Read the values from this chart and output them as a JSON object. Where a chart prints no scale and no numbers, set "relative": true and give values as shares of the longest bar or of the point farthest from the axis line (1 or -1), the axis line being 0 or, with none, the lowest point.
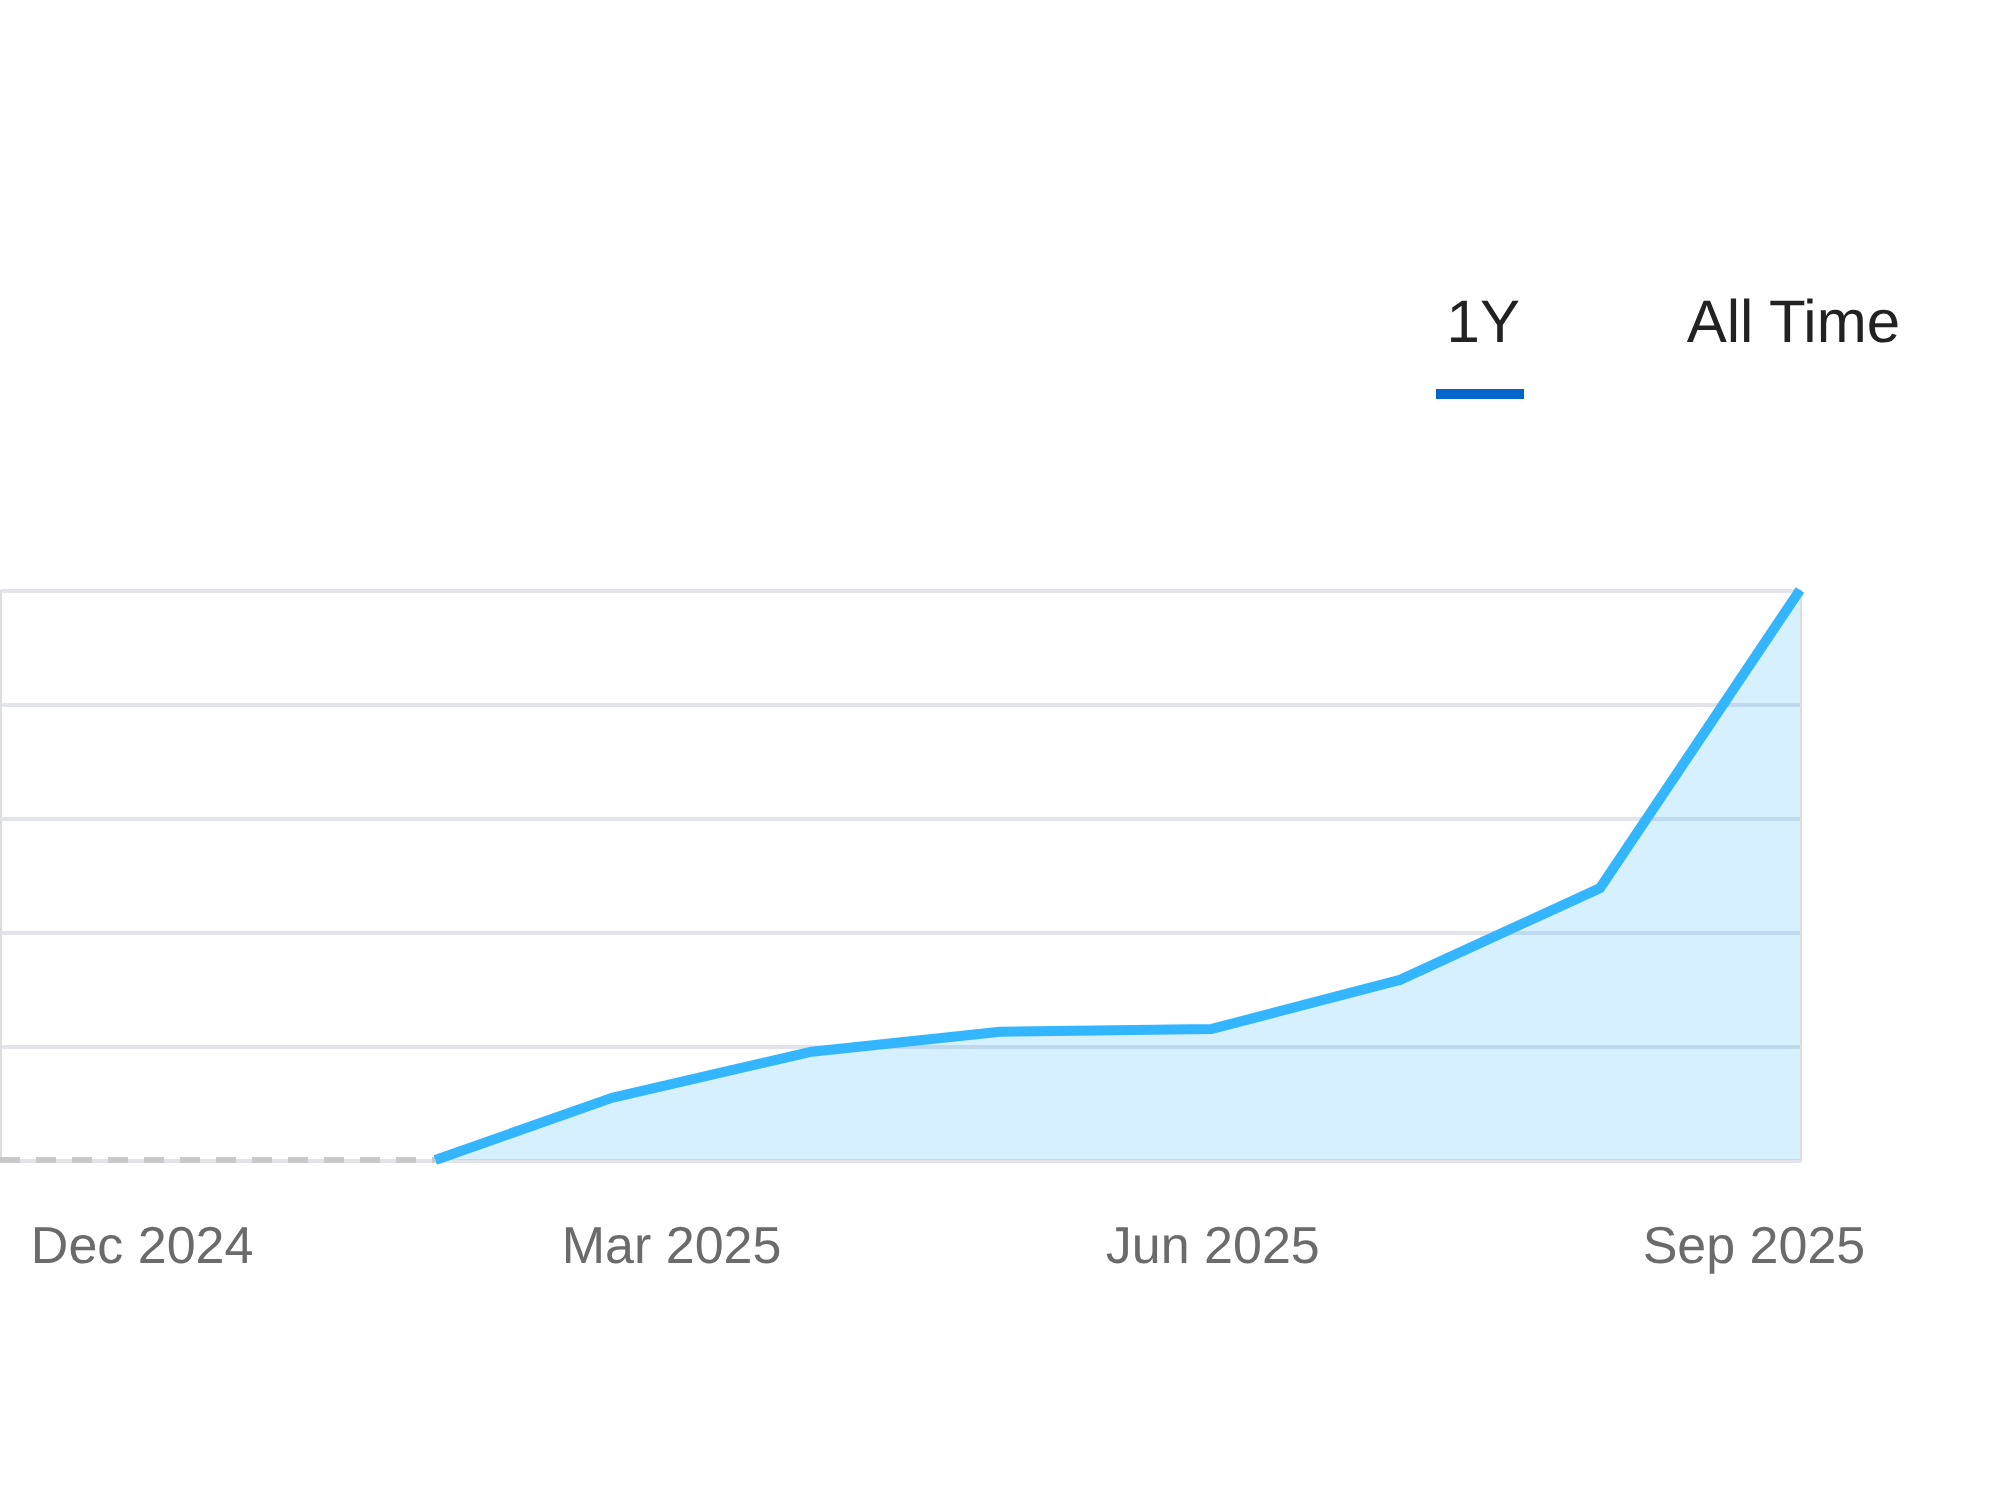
{
  "chart_data": {
    "type": "area",
    "relative": true,
    "xlim": [
      "2024-11-07",
      "2025-09-09"
    ],
    "xticks": [
      {
        "value": "2024-12-01",
        "label": "Dec 2024"
      },
      {
        "value": "2025-03-01",
        "label": "Mar 2025"
      },
      {
        "value": "2025-06-01",
        "label": "Jun 2025"
      },
      {
        "value": "2025-09-01",
        "label": "Sep 2025"
      }
    ],
    "series": [
      {
        "type": "line",
        "color": "#c8c8c8",
        "line_style": "dashed",
        "x": [
          "2024-11-07",
          "2025-01-20"
        ],
        "values": [
          0,
          0
        ]
      },
      {
        "type": "area",
        "color": "#33b5ff",
        "x": [
          "2025-01-20",
          "2025-02-19",
          "2025-03-25",
          "2025-04-26",
          "2025-06-01",
          "2025-07-03",
          "2025-08-06",
          "2025-09-09"
        ],
        "values": [
          0,
          0.109,
          0.19,
          0.225,
          0.23,
          0.316,
          0.477,
          1
        ]
      }
    ],
    "annotations": [
      "1Y",
      "All Time"
    ],
    "grid": "y"
  }
}
